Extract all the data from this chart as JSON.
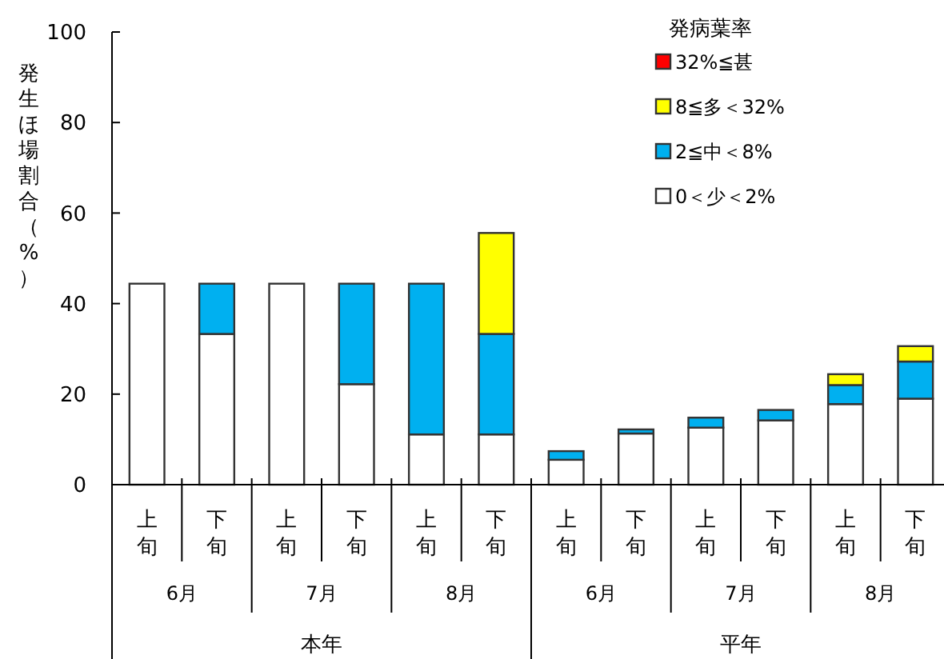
{
  "chart_data": {
    "type": "bar",
    "stacked": true,
    "ylabel": "発生ほ場割合（%）",
    "legend_title": "発病葉率",
    "categories": [
      "上旬",
      "下旬",
      "上旬",
      "下旬",
      "上旬",
      "下旬",
      "上旬",
      "下旬",
      "上旬",
      "下旬",
      "上旬",
      "下旬"
    ],
    "series": [
      {
        "name": "0＜少＜2%",
        "color": "#ffffff",
        "values": [
          44.4,
          33.3,
          44.4,
          22.2,
          11.1,
          11.1,
          5.5,
          11.3,
          12.6,
          14.2,
          17.8,
          19
        ]
      },
      {
        "name": "2≦中＜8%",
        "color": "#00b0f0",
        "values": [
          0,
          11.1,
          0,
          22.2,
          33.3,
          22.2,
          1.9,
          0.9,
          2.2,
          2.3,
          4.2,
          8.2
        ]
      },
      {
        "name": "8≦多＜32%",
        "color": "#ffff00",
        "values": [
          0,
          0,
          0,
          0,
          0,
          22.3,
          0,
          0,
          0,
          0,
          2.4,
          3.4
        ]
      },
      {
        "name": "32%≦甚",
        "color": "#ff0000",
        "values": [
          0,
          0,
          0,
          0,
          0,
          0,
          0,
          0,
          0,
          0,
          0,
          0
        ]
      }
    ],
    "ylim": [
      0,
      100
    ],
    "yticks": [
      0,
      20,
      40,
      60,
      80,
      100
    ],
    "grid": false,
    "legend": "top right",
    "annotations": [
      "6月",
      "7月",
      "8月",
      "6月",
      "7月",
      "8月",
      "本年",
      "平年"
    ]
  }
}
